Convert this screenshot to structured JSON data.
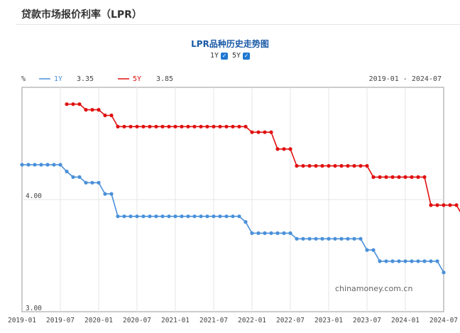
{
  "page": {
    "title": "贷款市场报价利率（LPR）"
  },
  "chart_title": "LPR品种历史走势图",
  "toggles": [
    {
      "label": "1Y",
      "checked": true
    },
    {
      "label": "5Y",
      "checked": true
    }
  ],
  "unit": "%",
  "legend": [
    {
      "name": "1Y",
      "value": "3.35",
      "color": "#4a90d9"
    },
    {
      "name": "5Y",
      "value": "3.85",
      "color": "#e01010"
    }
  ],
  "date_range": "2019-01 - 2024-07",
  "watermark": "chinamoney.com.cn",
  "chart_data": {
    "type": "line",
    "ylim": [
      3.0,
      5.0
    ],
    "yticks": [
      "4.00",
      "3.00"
    ],
    "ytick_values": [
      4.0,
      3.0
    ],
    "xlim": [
      "2019-01",
      "2024-07"
    ],
    "x_ticks": [
      "2019-01",
      "2019-07",
      "2020-01",
      "2020-07",
      "2021-01",
      "2021-07",
      "2022-01",
      "2022-07",
      "2023-01",
      "2023-07",
      "2024-01",
      "2024-07"
    ],
    "months": [
      "2019-01",
      "2019-02",
      "2019-03",
      "2019-04",
      "2019-05",
      "2019-06",
      "2019-07",
      "2019-08",
      "2019-09",
      "2019-10",
      "2019-11",
      "2019-12",
      "2020-01",
      "2020-02",
      "2020-03",
      "2020-04",
      "2020-05",
      "2020-06",
      "2020-07",
      "2020-08",
      "2020-09",
      "2020-10",
      "2020-11",
      "2020-12",
      "2021-01",
      "2021-02",
      "2021-03",
      "2021-04",
      "2021-05",
      "2021-06",
      "2021-07",
      "2021-08",
      "2021-09",
      "2021-10",
      "2021-11",
      "2021-12",
      "2022-01",
      "2022-02",
      "2022-03",
      "2022-04",
      "2022-05",
      "2022-06",
      "2022-07",
      "2022-08",
      "2022-09",
      "2022-10",
      "2022-11",
      "2022-12",
      "2023-01",
      "2023-02",
      "2023-03",
      "2023-04",
      "2023-05",
      "2023-06",
      "2023-07",
      "2023-08",
      "2023-09",
      "2023-10",
      "2023-11",
      "2023-12",
      "2024-01",
      "2024-02",
      "2024-03",
      "2024-04",
      "2024-05",
      "2024-06",
      "2024-07"
    ],
    "series": [
      {
        "name": "1Y",
        "color": "#4a90d9",
        "start_index": 0,
        "values": [
          4.31,
          4.31,
          4.31,
          4.31,
          4.31,
          4.31,
          4.31,
          4.25,
          4.2,
          4.2,
          4.15,
          4.15,
          4.15,
          4.05,
          4.05,
          3.85,
          3.85,
          3.85,
          3.85,
          3.85,
          3.85,
          3.85,
          3.85,
          3.85,
          3.85,
          3.85,
          3.85,
          3.85,
          3.85,
          3.85,
          3.85,
          3.85,
          3.85,
          3.85,
          3.85,
          3.8,
          3.7,
          3.7,
          3.7,
          3.7,
          3.7,
          3.7,
          3.7,
          3.65,
          3.65,
          3.65,
          3.65,
          3.65,
          3.65,
          3.65,
          3.65,
          3.65,
          3.65,
          3.65,
          3.55,
          3.55,
          3.45,
          3.45,
          3.45,
          3.45,
          3.45,
          3.45,
          3.45,
          3.45,
          3.45,
          3.45,
          3.35
        ]
      },
      {
        "name": "5Y",
        "color": "#e01010",
        "start_index": 7,
        "values": [
          4.85,
          4.85,
          4.85,
          4.8,
          4.8,
          4.8,
          4.75,
          4.75,
          4.65,
          4.65,
          4.65,
          4.65,
          4.65,
          4.65,
          4.65,
          4.65,
          4.65,
          4.65,
          4.65,
          4.65,
          4.65,
          4.65,
          4.65,
          4.65,
          4.65,
          4.65,
          4.65,
          4.65,
          4.65,
          4.6,
          4.6,
          4.6,
          4.6,
          4.45,
          4.45,
          4.45,
          4.3,
          4.3,
          4.3,
          4.3,
          4.3,
          4.3,
          4.3,
          4.3,
          4.3,
          4.3,
          4.3,
          4.3,
          4.2,
          4.2,
          4.2,
          4.2,
          4.2,
          4.2,
          4.2,
          4.2,
          4.2,
          3.95,
          3.95,
          3.95,
          3.95,
          3.95,
          3.85
        ]
      }
    ]
  }
}
